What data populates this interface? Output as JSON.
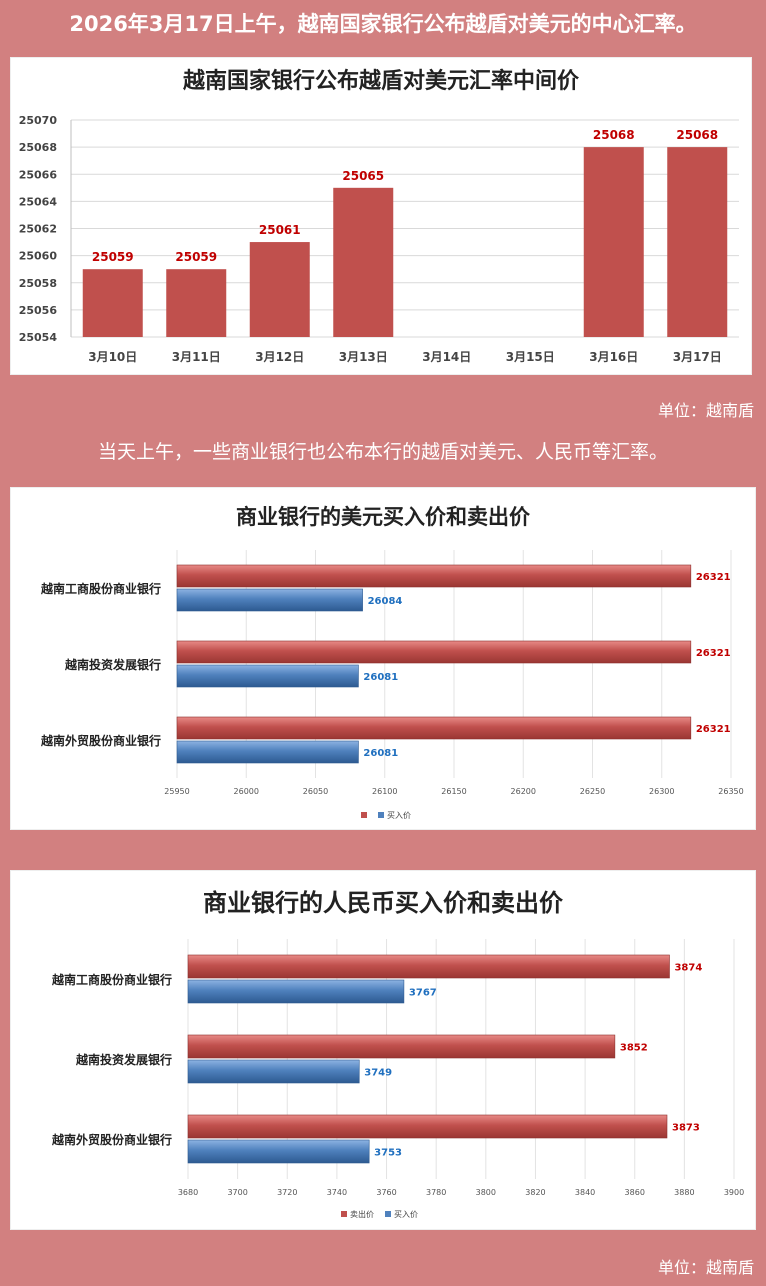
{
  "page": {
    "headline": "2026年3月17日上午，越南国家银行公布越盾对美元的中心汇率。",
    "subheadline": "当天上午，一些商业银行也公布本行的越盾对美元、人民币等汇率。",
    "unit_label_1": "单位：越南盾",
    "unit_label_2": "单位：越南盾"
  },
  "colors": {
    "red": "#c0504d",
    "blue": "#4f81bd",
    "red_label": "#c00000",
    "blue_label": "#1f6fbf"
  },
  "chart_data": [
    {
      "type": "bar",
      "title": "越南国家银行公布越盾对美元汇率中间价",
      "categories": [
        "3月10日",
        "3月11日",
        "3月12日",
        "3月13日",
        "3月14日",
        "3月15日",
        "3月16日",
        "3月17日"
      ],
      "values": [
        25059,
        25059,
        25061,
        25065,
        null,
        null,
        25068,
        25068
      ],
      "ylim": [
        25054,
        25070
      ],
      "yticks": [
        25054,
        25056,
        25058,
        25060,
        25062,
        25064,
        25066,
        25068,
        25070
      ],
      "grid": true
    },
    {
      "type": "bar",
      "orientation": "horizontal",
      "title": "商业银行的美元买入价和卖出价",
      "categories": [
        "越南工商股份商业银行",
        "越南投资发展银行",
        "越南外贸股份商业银行"
      ],
      "series": [
        {
          "name": "",
          "values": [
            26321,
            26321,
            26321
          ]
        },
        {
          "name": "买入价",
          "values": [
            26084,
            26081,
            26081
          ]
        }
      ],
      "xlim": [
        25950,
        26350
      ],
      "xticks": [
        25950,
        26000,
        26050,
        26100,
        26150,
        26200,
        26250,
        26300,
        26350
      ],
      "legend": "bottom"
    },
    {
      "type": "bar",
      "orientation": "horizontal",
      "title": "商业银行的人民币买入价和卖出价",
      "categories": [
        "越南工商股份商业银行",
        "越南投资发展银行",
        "越南外贸股份商业银行"
      ],
      "series": [
        {
          "name": "卖出价",
          "values": [
            3874,
            3852,
            3873
          ]
        },
        {
          "name": "买入价",
          "values": [
            3767,
            3749,
            3753
          ]
        }
      ],
      "xlim": [
        3680,
        3900
      ],
      "xticks": [
        3680,
        3700,
        3720,
        3740,
        3760,
        3780,
        3800,
        3820,
        3840,
        3860,
        3880,
        3900
      ],
      "legend": "bottom"
    }
  ]
}
